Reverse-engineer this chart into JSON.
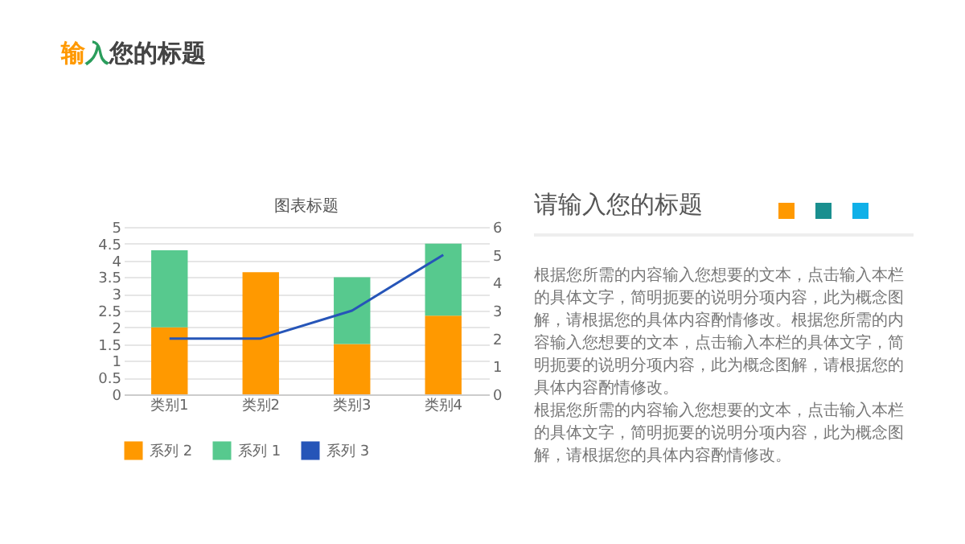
{
  "chart_data": [
    {
      "type": "bar",
      "title": "图表标题",
      "annotations": [
        "输入您的标题"
      ],
      "stacked": true,
      "categories": [
        "类别1",
        "类别2",
        "类别3",
        "类别4"
      ],
      "series": [
        {
          "name": "系列 2",
          "color": "#ff9900",
          "values": [
            2,
            3.65,
            1.5,
            2.35
          ]
        },
        {
          "name": "系列 1",
          "color": "#57c98e",
          "values": [
            2.3,
            null,
            2,
            2.15
          ]
        },
        {
          "name": "系列 3",
          "type": "line",
          "axis": "y2",
          "color": "#2655b8",
          "values": [
            2,
            2,
            3,
            5
          ]
        }
      ],
      "ylim": [
        0,
        5
      ],
      "yticks": [
        0,
        0.5,
        1,
        1.5,
        2,
        2.5,
        3,
        3.5,
        4,
        4.5,
        5
      ],
      "y2lim": [
        0,
        6
      ],
      "y2ticks": [
        0,
        1,
        2,
        3,
        4,
        5,
        6
      ],
      "grid": "y",
      "legend": "bottom"
    },
    {
      "type": "other",
      "title": "请输入您的标题",
      "annotations": [
        "根据您所需的内容输入您想要的文本，点击输入本栏的具体文字，简明扼要的说明分项内容，此为概念图解，请根据您的具体内容酌情修改。根据您所需的内容输入您想要的文本，点击输入本栏的具体文字，简明扼要的说明分项内容，此为概念图解，请根据您的具体内容酌情修改。",
        "根据您所需的内容输入您想要的文本，点击输入本栏的具体文字，简明扼要的说明分项内容，此为概念图解，请根据您的具体内容酌情修改。"
      ]
    }
  ]
}
